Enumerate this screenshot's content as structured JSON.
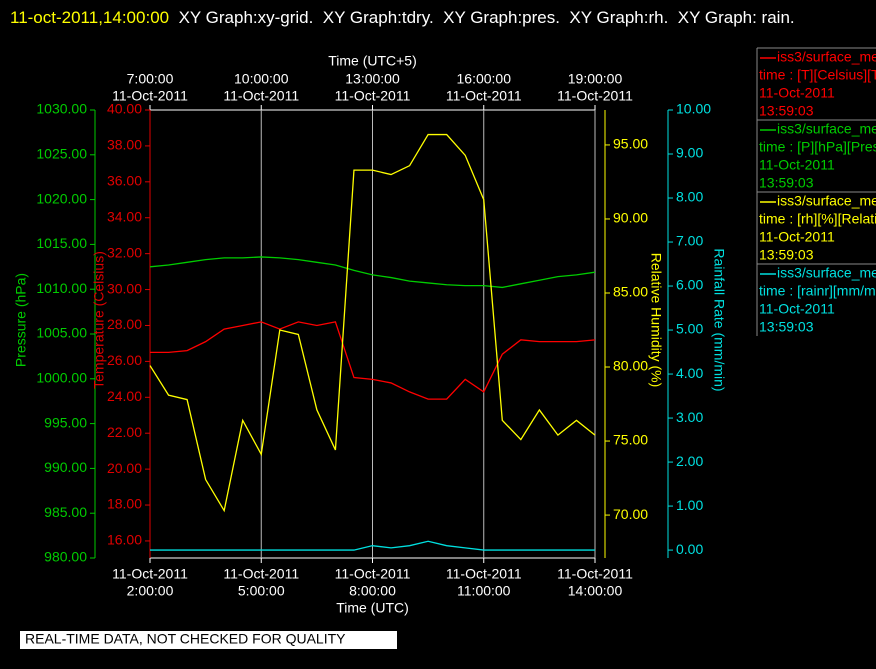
{
  "title_time": "11-oct-2011,14:00:00",
  "title": "XY Graph:xy-grid.  XY Graph:tdry.  XY Graph:pres.  XY Graph:rh.  XY Graph: rain.",
  "footer": "REAL-TIME DATA, NOT CHECKED FOR QUALITY",
  "chart_data": {
    "type": "line",
    "x_label": "Time (UTC)",
    "x2_label": "Time (UTC+5)",
    "x_tick_date": "11-Oct-2011",
    "x": [
      2,
      2.5,
      3,
      3.5,
      4,
      4.5,
      5,
      5.5,
      6,
      6.5,
      7,
      7.5,
      8,
      8.5,
      9,
      9.5,
      10,
      10.5,
      11,
      11.5,
      12,
      12.5,
      13,
      13.5,
      14
    ],
    "xlim": [
      2,
      14
    ],
    "xticks": [
      {
        "value": 2,
        "label": "2:00:00"
      },
      {
        "value": 5,
        "label": "5:00:00"
      },
      {
        "value": 8,
        "label": "8:00:00"
      },
      {
        "value": 11,
        "label": "11:00:00"
      },
      {
        "value": 14,
        "label": "14:00:00"
      }
    ],
    "x2ticks": [
      {
        "value": 2,
        "label": "7:00:00"
      },
      {
        "value": 5,
        "label": "10:00:00"
      },
      {
        "value": 8,
        "label": "13:00:00"
      },
      {
        "value": 11,
        "label": "16:00:00"
      },
      {
        "value": 14,
        "label": "19:00:00"
      }
    ],
    "grid": true,
    "axes": [
      {
        "label": "Pressure (hPa)",
        "color": "#00cc00",
        "side": "left",
        "lim": [
          980,
          1030
        ],
        "ticks": [
          {
            "value": 980,
            "label": "980.00"
          },
          {
            "value": 985,
            "label": "985.00"
          },
          {
            "value": 990,
            "label": "990.00"
          },
          {
            "value": 995,
            "label": "995.00"
          },
          {
            "value": 1000,
            "label": "1000.00"
          },
          {
            "value": 1005,
            "label": "1005.00"
          },
          {
            "value": 1010,
            "label": "1010.00"
          },
          {
            "value": 1015,
            "label": "1015.00"
          },
          {
            "value": 1020,
            "label": "1020.00"
          },
          {
            "value": 1025,
            "label": "1025.00"
          },
          {
            "value": 1030,
            "label": "1030.00"
          }
        ]
      },
      {
        "label": "Temperature (Celsius)",
        "color": "#e00000",
        "side": "left",
        "lim": [
          15.05,
          40
        ],
        "ticks": [
          {
            "value": 16,
            "label": "16.00"
          },
          {
            "value": 18,
            "label": "18.00"
          },
          {
            "value": 20,
            "label": "20.00"
          },
          {
            "value": 22,
            "label": "22.00"
          },
          {
            "value": 24,
            "label": "24.00"
          },
          {
            "value": 26,
            "label": "26.00"
          },
          {
            "value": 28,
            "label": "28.00"
          },
          {
            "value": 30,
            "label": "30.00"
          },
          {
            "value": 32,
            "label": "32.00"
          },
          {
            "value": 34,
            "label": "34.00"
          },
          {
            "value": 36,
            "label": "36.00"
          },
          {
            "value": 38,
            "label": "38.00"
          },
          {
            "value": 40,
            "label": "40.00"
          }
        ]
      },
      {
        "label": "Relative Humidity (%)",
        "color": "#ffff00",
        "side": "right",
        "lim": [
          67.1,
          97.36
        ],
        "ticks": [
          {
            "value": 70,
            "label": "70.00"
          },
          {
            "value": 75,
            "label": "75.00"
          },
          {
            "value": 80,
            "label": "80.00"
          },
          {
            "value": 85,
            "label": "85.00"
          },
          {
            "value": 90,
            "label": "90.00"
          },
          {
            "value": 95,
            "label": "95.00"
          }
        ]
      },
      {
        "label": "Rainfall Rate (mm/min)",
        "color": "#00e0e0",
        "side": "right",
        "lim": [
          -0.18,
          10
        ],
        "ticks": [
          {
            "value": 0,
            "label": "0.00"
          },
          {
            "value": 1,
            "label": "1.00"
          },
          {
            "value": 2,
            "label": "2.00"
          },
          {
            "value": 3,
            "label": "3.00"
          },
          {
            "value": 4,
            "label": "4.00"
          },
          {
            "value": 5,
            "label": "5.00"
          },
          {
            "value": 6,
            "label": "6.00"
          },
          {
            "value": 7,
            "label": "7.00"
          },
          {
            "value": 8,
            "label": "8.00"
          },
          {
            "value": 9,
            "label": "9.00"
          },
          {
            "value": 10,
            "label": "10.00"
          }
        ]
      }
    ],
    "series": [
      {
        "name": "iss3/surface_me",
        "legend_detail": [
          "time : [T][Celsius][T",
          "11-Oct-2011",
          "13:59:03"
        ],
        "color": "#ff0000",
        "axis": 1,
        "values": [
          26.5,
          26.5,
          26.6,
          27.1,
          27.8,
          28.0,
          28.2,
          27.8,
          28.2,
          28.0,
          28.2,
          25.1,
          25.0,
          24.8,
          24.3,
          23.9,
          23.9,
          25.0,
          24.3,
          26.4,
          27.2,
          27.1,
          27.1,
          27.1,
          27.2
        ]
      },
      {
        "name": "iss3/surface_me",
        "legend_detail": [
          "time : [P][hPa][Pres",
          "11-Oct-2011",
          "13:59:03"
        ],
        "color": "#00cc00",
        "axis": 0,
        "values": [
          1012.5,
          1012.7,
          1013.0,
          1013.3,
          1013.5,
          1013.5,
          1013.6,
          1013.5,
          1013.3,
          1013.0,
          1012.7,
          1012.1,
          1011.6,
          1011.3,
          1010.9,
          1010.7,
          1010.5,
          1010.4,
          1010.4,
          1010.2,
          1010.6,
          1011.0,
          1011.4,
          1011.6,
          1011.9
        ]
      },
      {
        "name": "iss3/surface_me",
        "legend_detail": [
          "time : [rh][%][Relati",
          "11-Oct-2011",
          "13:59:03"
        ],
        "color": "#ffff00",
        "axis": 2,
        "values": [
          80.1,
          78.1,
          77.8,
          72.4,
          70.3,
          76.4,
          74.1,
          82.5,
          82.2,
          77.1,
          74.4,
          93.3,
          93.3,
          93.0,
          93.6,
          95.7,
          95.7,
          94.3,
          91.3,
          76.4,
          75.1,
          77.1,
          75.4,
          76.4,
          75.4
        ]
      },
      {
        "name": "iss3/surface_me",
        "legend_detail": [
          "time : [rainr][mm/mi",
          "11-Oct-2011",
          "13:59:03"
        ],
        "color": "#00e0e0",
        "axis": 3,
        "values": [
          0,
          0,
          0,
          0,
          0,
          0,
          0,
          0,
          0,
          0,
          0,
          0,
          0.1,
          0.05,
          0.1,
          0.2,
          0.1,
          0.05,
          0,
          0,
          0,
          0,
          0,
          0,
          0
        ]
      }
    ]
  }
}
